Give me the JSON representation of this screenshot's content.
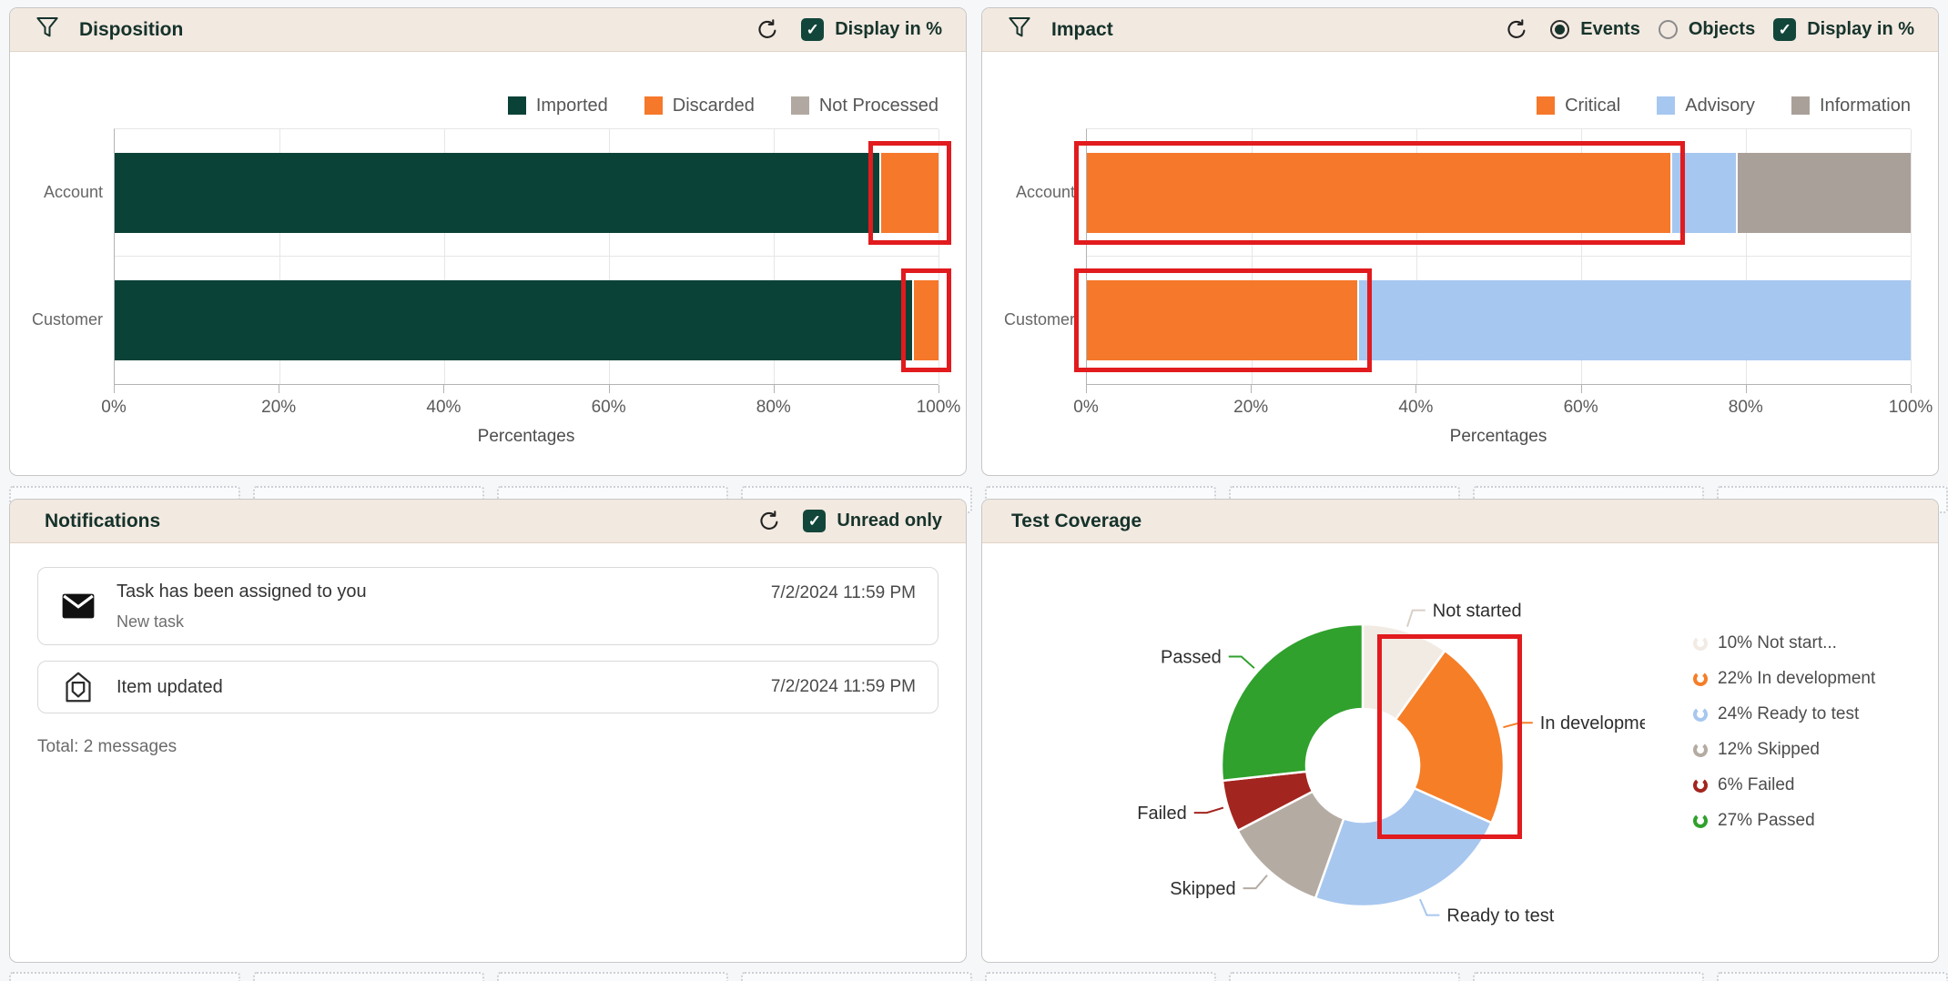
{
  "page": {
    "background": "#f5f7f9"
  },
  "annotations": {
    "color": "#e11b1e"
  },
  "panels": {
    "disposition": {
      "title": "Disposition",
      "controls": {
        "display_pct": "Display in %",
        "display_pct_checked": true
      }
    },
    "impact": {
      "title": "Impact",
      "controls": {
        "radio_events": "Events",
        "radio_objects": "Objects",
        "selected_radio": "Events",
        "display_pct": "Display in %",
        "display_pct_checked": true
      }
    },
    "notifications": {
      "title": "Notifications",
      "controls": {
        "unread_only": "Unread only",
        "unread_only_checked": true
      },
      "items": [
        {
          "title": "Task has been assigned to you",
          "subtitle": "New task",
          "time": "7/2/2024 11:59 PM",
          "read": false
        },
        {
          "title": "Item updated",
          "time": "7/2/2024 11:59 PM",
          "read": true
        }
      ],
      "footer": "Total: 2 messages"
    },
    "test_coverage": {
      "title": "Test Coverage"
    }
  },
  "chart_data": [
    {
      "panel": "Disposition",
      "type": "bar",
      "orientation": "horizontal-stacked",
      "categories": [
        "Account",
        "Customer"
      ],
      "series": [
        {
          "name": "Imported",
          "color": "#0b4237",
          "values": [
            93,
            97
          ]
        },
        {
          "name": "Discarded",
          "color": "#f5782b",
          "values": [
            7,
            3
          ]
        },
        {
          "name": "Not Processed",
          "color": "#b1a9a1",
          "values": [
            0,
            0
          ]
        }
      ],
      "xlabel": "Percentages",
      "x_ticks": [
        "0%",
        "20%",
        "40%",
        "60%",
        "80%",
        "100%"
      ],
      "xlim": [
        0,
        100
      ],
      "grid": true,
      "legend_position": "top-right",
      "highlights": [
        {
          "category": "Account",
          "series": "Discarded"
        },
        {
          "category": "Customer",
          "series": "Discarded"
        }
      ]
    },
    {
      "panel": "Impact",
      "type": "bar",
      "orientation": "horizontal-stacked",
      "categories": [
        "Account",
        "Customer"
      ],
      "series": [
        {
          "name": "Critical",
          "color": "#f5782b",
          "values": [
            71,
            33
          ]
        },
        {
          "name": "Advisory",
          "color": "#a6c7f0",
          "values": [
            8,
            67
          ]
        },
        {
          "name": "Information",
          "color": "#a9a099",
          "values": [
            21,
            0
          ]
        }
      ],
      "xlabel": "Percentages",
      "x_ticks": [
        "0%",
        "20%",
        "40%",
        "60%",
        "80%",
        "100%"
      ],
      "xlim": [
        0,
        100
      ],
      "grid": true,
      "legend_position": "top-right",
      "highlights": [
        {
          "category": "Account",
          "series": "Critical"
        },
        {
          "category": "Customer",
          "series": "Critical"
        }
      ]
    },
    {
      "panel": "Test Coverage",
      "type": "pie",
      "donut": true,
      "inner_radius_ratio": 0.4,
      "slices": [
        {
          "label": "Not started",
          "pct": 10,
          "color": "#f2ebe4",
          "legend": "10% Not start..."
        },
        {
          "label": "In development",
          "pct": 22,
          "color": "#f57e27",
          "legend": "22% In development"
        },
        {
          "label": "Ready to test",
          "pct": 24,
          "color": "#a7c7ef",
          "legend": "24% Ready to test"
        },
        {
          "label": "Skipped",
          "pct": 12,
          "color": "#b4aba3",
          "legend": "12% Skipped"
        },
        {
          "label": "Failed",
          "pct": 6,
          "color": "#a3251f",
          "legend": "6% Failed"
        },
        {
          "label": "Passed",
          "pct": 27,
          "color": "#2fa12c",
          "legend": "27% Passed"
        }
      ],
      "highlights": [
        "In development"
      ]
    }
  ]
}
